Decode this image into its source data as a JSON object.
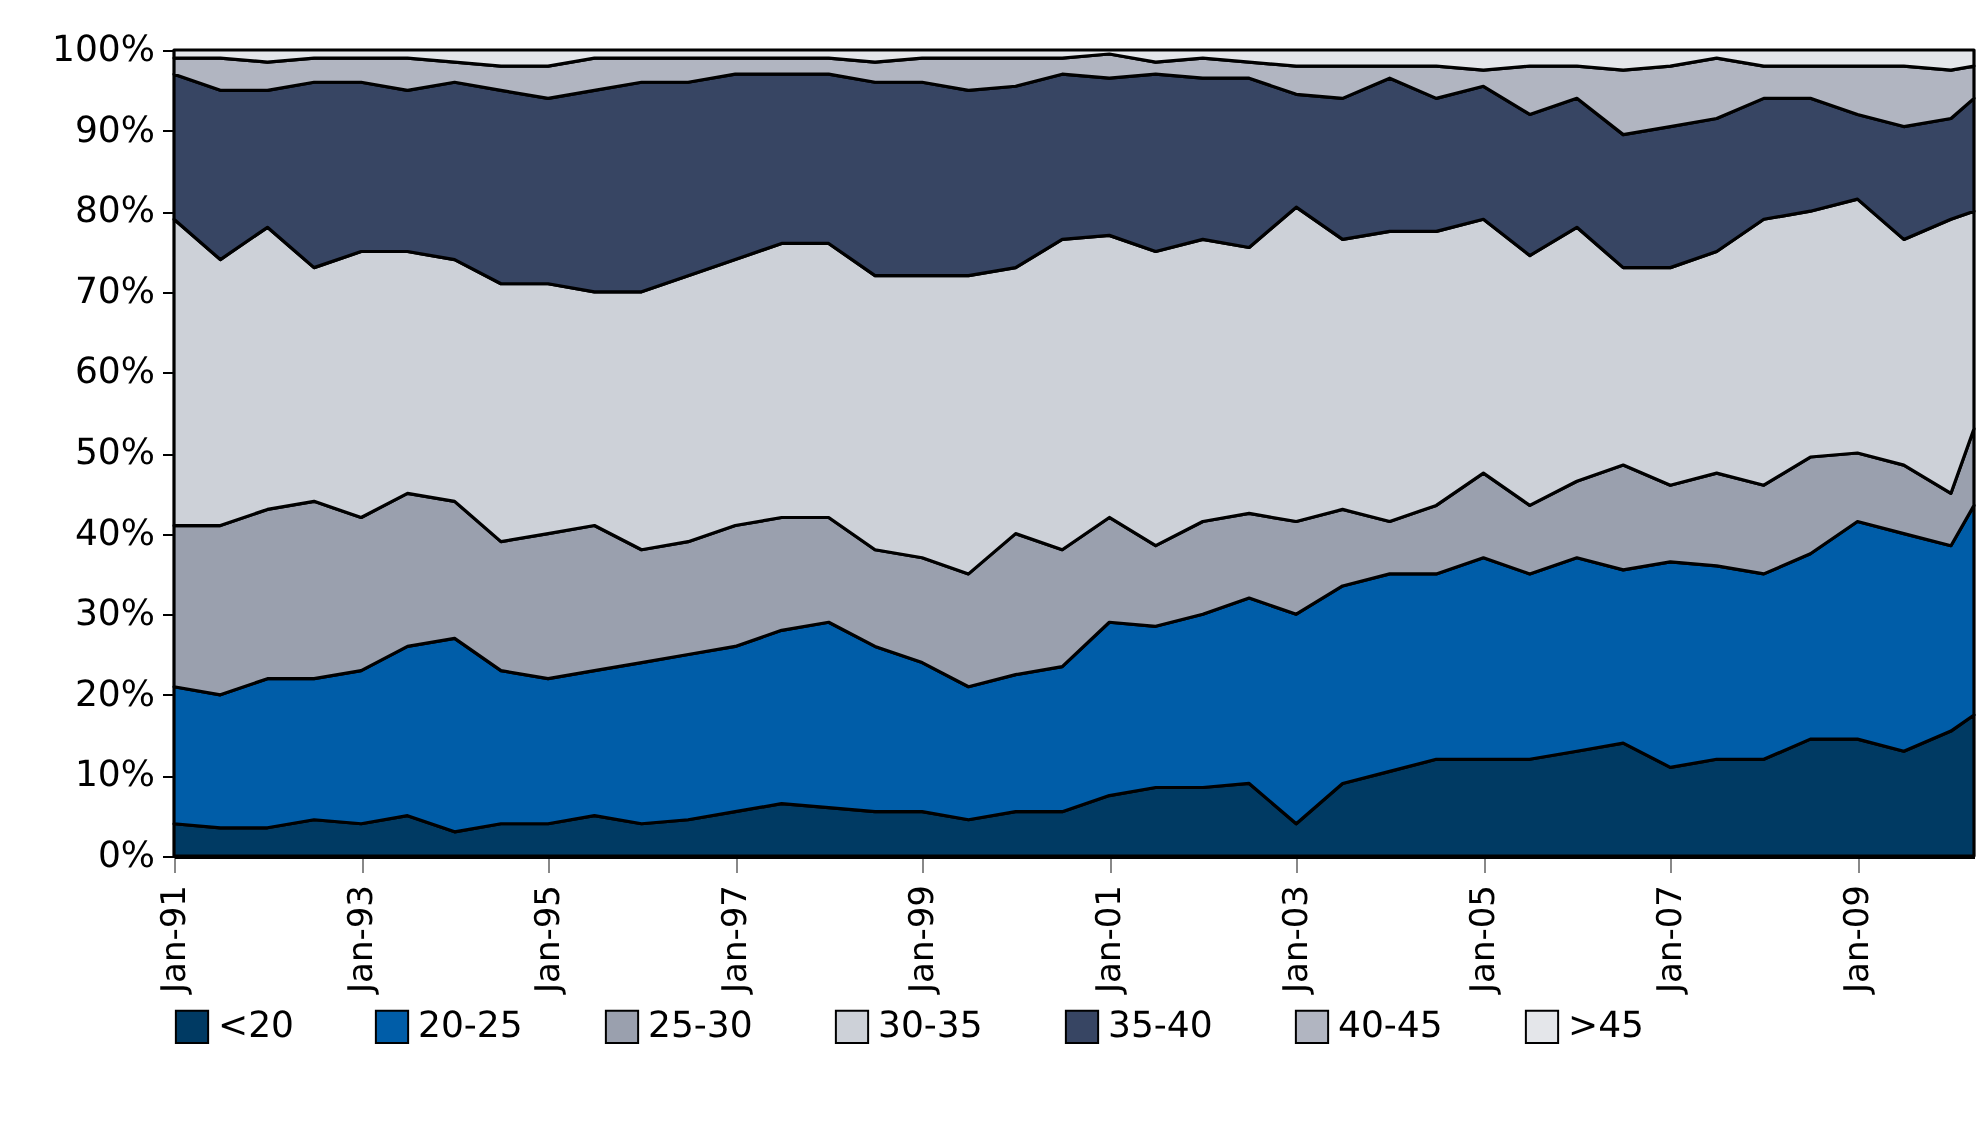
{
  "chart_data": {
    "type": "area",
    "stacked": true,
    "legend": "bottom",
    "x": [
      "1991-01",
      "1991-07",
      "1992-01",
      "1992-07",
      "1993-01",
      "1993-07",
      "1994-01",
      "1994-07",
      "1995-01",
      "1995-07",
      "1996-01",
      "1996-07",
      "1997-01",
      "1997-07",
      "1998-01",
      "1998-07",
      "1999-01",
      "1999-07",
      "2000-01",
      "2000-07",
      "2001-01",
      "2001-07",
      "2002-01",
      "2002-07",
      "2003-01",
      "2003-07",
      "2004-01",
      "2004-07",
      "2005-01",
      "2005-07",
      "2006-01",
      "2006-07",
      "2007-01",
      "2007-07",
      "2008-01",
      "2008-07",
      "2009-01",
      "2009-07",
      "2010-01",
      "2010-04"
    ],
    "xlim": [
      "1991-01",
      "2010-04"
    ],
    "xticks": [
      {
        "value": "1991-01",
        "label": "Jan-91"
      },
      {
        "value": "1993-01",
        "label": "Jan-93"
      },
      {
        "value": "1995-01",
        "label": "Jan-95"
      },
      {
        "value": "1997-01",
        "label": "Jan-97"
      },
      {
        "value": "1999-01",
        "label": "Jan-99"
      },
      {
        "value": "2001-01",
        "label": "Jan-01"
      },
      {
        "value": "2003-01",
        "label": "Jan-03"
      },
      {
        "value": "2005-01",
        "label": "Jan-05"
      },
      {
        "value": "2007-01",
        "label": "Jan-07"
      },
      {
        "value": "2009-01",
        "label": "Jan-09"
      }
    ],
    "ylim": [
      0,
      100
    ],
    "yticks": [
      {
        "value": 0,
        "label": "0%"
      },
      {
        "value": 10,
        "label": "10%"
      },
      {
        "value": 20,
        "label": "20%"
      },
      {
        "value": 30,
        "label": "30%"
      },
      {
        "value": 40,
        "label": "40%"
      },
      {
        "value": 50,
        "label": "50%"
      },
      {
        "value": 60,
        "label": "60%"
      },
      {
        "value": 70,
        "label": "70%"
      },
      {
        "value": 80,
        "label": "80%"
      },
      {
        "value": 90,
        "label": "90%"
      },
      {
        "value": 100,
        "label": "100%"
      }
    ],
    "series": [
      {
        "name": "<20",
        "color": "#003a63",
        "values": [
          4,
          3.5,
          3.5,
          4.5,
          4,
          5,
          3,
          4,
          4,
          5,
          4,
          4.5,
          5.5,
          6.5,
          6,
          5.5,
          5.5,
          4.5,
          5.5,
          5.5,
          7.5,
          8.5,
          8.5,
          9,
          4,
          9,
          10.5,
          12,
          12,
          12,
          13,
          14,
          11,
          12,
          12,
          14.5,
          14.5,
          13,
          15.5,
          17.5
        ]
      },
      {
        "name": "20-25",
        "color": "#005da8",
        "values": [
          17,
          16.5,
          18.5,
          17.5,
          19,
          21,
          24,
          19,
          18,
          18,
          20,
          20.5,
          20.5,
          21.5,
          23,
          20.5,
          18.5,
          16.5,
          17,
          18,
          21.5,
          20,
          21.5,
          23,
          26,
          24.5,
          24.5,
          23,
          25,
          23,
          24,
          21.5,
          25.5,
          24,
          23,
          23,
          27,
          27,
          23,
          26
        ]
      },
      {
        "name": "25-30",
        "color": "#9aa0ae",
        "values": [
          20,
          21,
          21,
          22,
          19,
          19,
          17,
          16,
          18,
          18,
          14,
          14,
          15,
          14,
          13,
          12,
          13,
          14,
          17.5,
          14.5,
          13,
          10,
          11.5,
          10.5,
          11.5,
          9.5,
          6.5,
          8.5,
          10.5,
          8.5,
          9.5,
          13,
          9.5,
          11.5,
          11,
          12,
          8.5,
          8.5,
          6.5,
          9.5
        ]
      },
      {
        "name": "30-35",
        "color": "#cdd1d8",
        "values": [
          38,
          33,
          35,
          29,
          33,
          30,
          30,
          32,
          31,
          29,
          32,
          33,
          33,
          34,
          34,
          34,
          35,
          37,
          33,
          38.5,
          35,
          36.5,
          35,
          33,
          39,
          33.5,
          36,
          34,
          31.5,
          31,
          31.5,
          24.5,
          27,
          27.5,
          33,
          30.5,
          31.5,
          28,
          34,
          27
        ]
      },
      {
        "name": "35-40",
        "color": "#374563",
        "values": [
          18,
          21,
          17,
          23,
          21,
          20,
          22,
          24,
          23,
          25,
          26,
          24,
          23,
          21,
          21,
          24,
          24,
          23,
          22.5,
          20.5,
          19.5,
          22,
          20,
          21,
          14,
          17.5,
          19,
          16.5,
          16.5,
          17.5,
          16,
          16.5,
          17.5,
          16.5,
          15,
          14,
          10.5,
          14,
          12.5,
          14
        ]
      },
      {
        "name": "40-45",
        "color": "#b1b5c1",
        "values": [
          2,
          4,
          3.5,
          3,
          3,
          4,
          2.5,
          3,
          4,
          4,
          3,
          3,
          2,
          2,
          2,
          2.5,
          3,
          4,
          3.5,
          2,
          3,
          1.5,
          2.5,
          2,
          3.5,
          4,
          1.5,
          4,
          2,
          6,
          4,
          8,
          7.5,
          7.5,
          4,
          4,
          6,
          7.5,
          6,
          4
        ]
      },
      {
        "name": ">45",
        "color": "#e4e6ea",
        "values": [
          1,
          1,
          1.5,
          1,
          1,
          1,
          1.5,
          2,
          2,
          1,
          1,
          1,
          1,
          1,
          1,
          1.5,
          1,
          1,
          1,
          1,
          0.5,
          1.5,
          1,
          1.5,
          2,
          2,
          2,
          2,
          2.5,
          2,
          2,
          2.5,
          2,
          1,
          2,
          2,
          2,
          2,
          2.5,
          2
        ]
      }
    ]
  }
}
